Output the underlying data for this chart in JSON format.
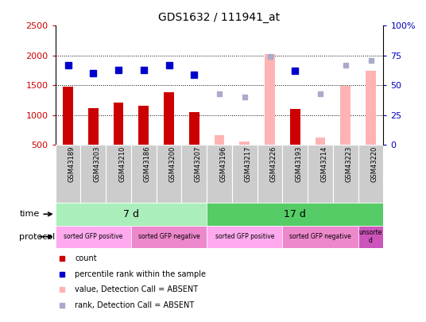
{
  "title": "GDS1632 / 111941_at",
  "samples": [
    "GSM43189",
    "GSM43203",
    "GSM43210",
    "GSM43186",
    "GSM43200",
    "GSM43207",
    "GSM43196",
    "GSM43217",
    "GSM43226",
    "GSM43193",
    "GSM43214",
    "GSM43223",
    "GSM43220"
  ],
  "count_values": [
    1480,
    1120,
    1205,
    1160,
    1390,
    1045,
    null,
    null,
    null,
    1100,
    null,
    null,
    null
  ],
  "count_absent_values": [
    null,
    null,
    null,
    null,
    null,
    null,
    660,
    560,
    2020,
    null,
    625,
    1490,
    1750
  ],
  "rank_values": [
    67,
    60,
    63,
    63,
    67,
    59,
    null,
    null,
    null,
    62,
    null,
    null,
    null
  ],
  "rank_absent_values": [
    null,
    null,
    null,
    null,
    null,
    null,
    43,
    40,
    74,
    null,
    43,
    67,
    71
  ],
  "ylim_left": [
    500,
    2500
  ],
  "ylim_right": [
    0,
    100
  ],
  "yticks_left": [
    500,
    1000,
    1500,
    2000,
    2500
  ],
  "yticks_right": [
    0,
    25,
    50,
    75,
    100
  ],
  "color_count": "#cc0000",
  "color_count_absent": "#ffb3b3",
  "color_rank": "#0000cc",
  "color_rank_absent": "#aaaacc",
  "bar_width": 0.4,
  "time_groups": [
    {
      "label": "7 d",
      "start": 0,
      "end": 6,
      "color": "#aaeebb"
    },
    {
      "label": "17 d",
      "start": 6,
      "end": 13,
      "color": "#55cc66"
    }
  ],
  "protocol_groups": [
    {
      "label": "sorted GFP positive",
      "start": 0,
      "end": 3,
      "color": "#ffaaee"
    },
    {
      "label": "sorted GFP negative",
      "start": 3,
      "end": 6,
      "color": "#ee88cc"
    },
    {
      "label": "sorted GFP positive",
      "start": 6,
      "end": 9,
      "color": "#ffaaee"
    },
    {
      "label": "sorted GFP negative",
      "start": 9,
      "end": 12,
      "color": "#ee88cc"
    },
    {
      "label": "unsorte\nd",
      "start": 12,
      "end": 13,
      "color": "#cc55bb"
    }
  ],
  "bg_color": "#ffffff",
  "grid_color": "#000000",
  "tick_area_bg": "#cccccc",
  "legend_items": [
    {
      "color": "#cc0000",
      "label": "count"
    },
    {
      "color": "#0000cc",
      "label": "percentile rank within the sample"
    },
    {
      "color": "#ffb3b3",
      "label": "value, Detection Call = ABSENT"
    },
    {
      "color": "#aaaacc",
      "label": "rank, Detection Call = ABSENT"
    }
  ]
}
